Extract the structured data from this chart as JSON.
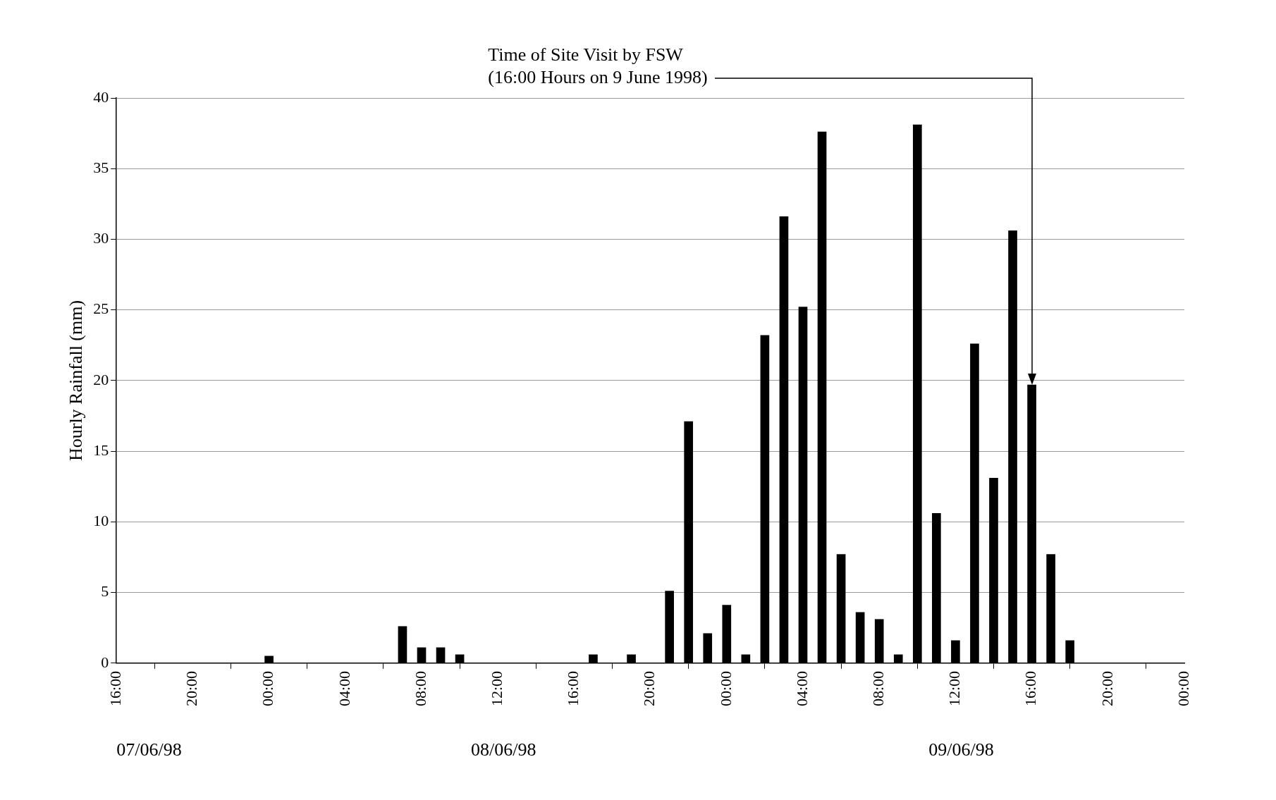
{
  "chart_data": {
    "type": "bar",
    "ylabel": "Hourly Rainfall (mm)",
    "x": [
      "1998-06-08T00:00",
      "1998-06-08T07:00",
      "1998-06-08T08:00",
      "1998-06-08T09:00",
      "1998-06-08T10:00",
      "1998-06-08T17:00",
      "1998-06-08T19:00",
      "1998-06-08T21:00",
      "1998-06-08T22:00",
      "1998-06-08T23:00",
      "1998-06-09T00:00",
      "1998-06-09T01:00",
      "1998-06-09T02:00",
      "1998-06-09T03:00",
      "1998-06-09T04:00",
      "1998-06-09T05:00",
      "1998-06-09T06:00",
      "1998-06-09T07:00",
      "1998-06-09T08:00",
      "1998-06-09T09:00",
      "1998-06-09T10:00",
      "1998-06-09T11:00",
      "1998-06-09T12:00",
      "1998-06-09T13:00",
      "1998-06-09T14:00",
      "1998-06-09T15:00",
      "1998-06-09T16:00",
      "1998-06-09T17:00",
      "1998-06-09T18:00"
    ],
    "values": [
      0.5,
      2.6,
      1.1,
      1.1,
      0.6,
      0.6,
      0.6,
      5.1,
      17.1,
      2.1,
      4.1,
      0.6,
      23.2,
      31.6,
      25.2,
      37.6,
      7.7,
      3.6,
      3.1,
      0.6,
      38.1,
      10.6,
      1.6,
      22.6,
      13.1,
      30.6,
      19.7,
      7.7,
      1.6
    ],
    "color": "#000000",
    "xlim": [
      "1998-06-07T16:00",
      "1998-06-10T00:00"
    ],
    "xticks": [
      {
        "value": "1998-06-07T16:00",
        "label": "16:00"
      },
      {
        "value": "1998-06-07T20:00",
        "label": "20:00"
      },
      {
        "value": "1998-06-08T00:00",
        "label": "00:00"
      },
      {
        "value": "1998-06-08T04:00",
        "label": "04:00"
      },
      {
        "value": "1998-06-08T08:00",
        "label": "08:00"
      },
      {
        "value": "1998-06-08T12:00",
        "label": "12:00"
      },
      {
        "value": "1998-06-08T16:00",
        "label": "16:00"
      },
      {
        "value": "1998-06-08T20:00",
        "label": "20:00"
      },
      {
        "value": "1998-06-09T00:00",
        "label": "00:00"
      },
      {
        "value": "1998-06-09T04:00",
        "label": "04:00"
      },
      {
        "value": "1998-06-09T08:00",
        "label": "08:00"
      },
      {
        "value": "1998-06-09T12:00",
        "label": "12:00"
      },
      {
        "value": "1998-06-09T16:00",
        "label": "16:00"
      },
      {
        "value": "1998-06-09T20:00",
        "label": "20:00"
      },
      {
        "value": "1998-06-10T00:00",
        "label": "00:00"
      }
    ],
    "ylim": [
      0,
      40
    ],
    "yticks": [
      0,
      5,
      10,
      15,
      20,
      25,
      30,
      35,
      40
    ],
    "grid": "y",
    "ref_lines": [
      {
        "axis": "x",
        "value": "1998-06-09T16:00",
        "label": "Time of Site Visit by FSW\n(16:00 Hours on 9 June 1998)"
      }
    ],
    "annotations": [
      "07/06/98",
      "08/06/98",
      "09/06/98"
    ]
  }
}
